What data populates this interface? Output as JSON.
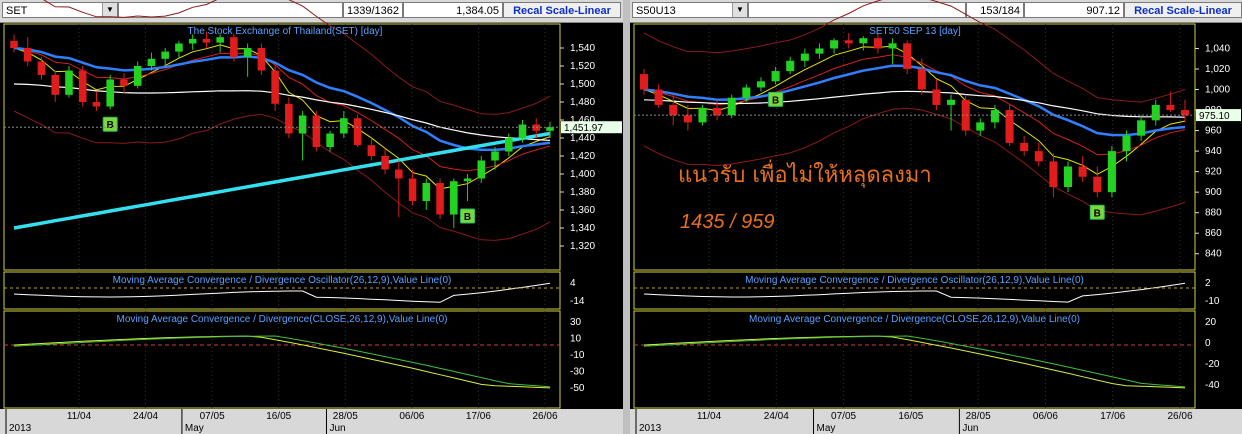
{
  "panels": [
    {
      "symbol": "SET",
      "count": "1339/1362",
      "price": "1,384.05",
      "scale_button": "Recal Scale-Linear",
      "title": "The Stock Exchange of Thailand(SET) [day]",
      "last_label": "1,451.97",
      "last_value": 1451.97,
      "buy_marker": "B",
      "macd1_title": "Moving Average Convergence / Divergence Oscillator(26,12,9),Value Line(0)",
      "macd2_title": "Moving Average Convergence / Divergence(CLOSE,26,12,9),Value Line(0)",
      "x_ticks": [
        "11/04",
        "24/04",
        "07/05",
        "16/05",
        "28/05",
        "06/06",
        "17/06",
        "26/06"
      ],
      "months": [
        "2013",
        "May",
        "Jun"
      ],
      "price_axis": {
        "min": 1300,
        "max": 1560,
        "ticks": [
          1320,
          1340,
          1360,
          1380,
          1400,
          1420,
          1440,
          1460,
          1480,
          1500,
          1520,
          1540
        ]
      },
      "macd1_axis": {
        "ticks": [
          "4",
          "-14"
        ]
      },
      "macd2_axis": {
        "ticks": [
          "30",
          "10",
          "-10",
          "-30",
          "-50"
        ]
      }
    },
    {
      "symbol": "S50U13",
      "count": "153/184",
      "price": "907.12",
      "scale_button": "Recal Scale-Linear",
      "title": "SET50 SEP 13  [day]",
      "last_label": "975.10",
      "last_value": 975.1,
      "buy_marker": "B",
      "annotation_line1": "แนวรับ เพื่อไม่ให้หลุดลงมา",
      "annotation_line2": "1435 / 959",
      "macd1_title": "Moving Average Convergence / Divergence Oscillator(26,12,9),Value Line(0)",
      "macd2_title": "Moving Average Convergence / Divergence(CLOSE,26,12,9),Value Line(0)",
      "x_ticks": [
        "11/04",
        "24/04",
        "07/05",
        "16/05",
        "28/05",
        "06/06",
        "17/06",
        "26/06"
      ],
      "months": [
        "2013",
        "May",
        "Jun"
      ],
      "price_axis": {
        "min": 830,
        "max": 1058,
        "ticks": [
          840,
          860,
          880,
          900,
          920,
          940,
          960,
          980,
          1000,
          1020,
          1040
        ]
      },
      "macd1_axis": {
        "ticks": [
          "2",
          "-10"
        ]
      },
      "macd2_axis": {
        "ticks": [
          "20",
          "0",
          "-20",
          "-40"
        ]
      }
    }
  ],
  "chart_data": [
    {
      "type": "candlestick",
      "symbol": "SET",
      "candles": [
        [
          1548,
          1555,
          1535,
          1540
        ],
        [
          1540,
          1552,
          1520,
          1525
        ],
        [
          1525,
          1530,
          1505,
          1510
        ],
        [
          1510,
          1515,
          1480,
          1488
        ],
        [
          1488,
          1520,
          1485,
          1515
        ],
        [
          1515,
          1520,
          1475,
          1480
        ],
        [
          1480,
          1492,
          1470,
          1475
        ],
        [
          1475,
          1510,
          1472,
          1505
        ],
        [
          1505,
          1512,
          1490,
          1498
        ],
        [
          1498,
          1525,
          1495,
          1520
        ],
        [
          1520,
          1535,
          1515,
          1528
        ],
        [
          1528,
          1540,
          1520,
          1536
        ],
        [
          1536,
          1548,
          1528,
          1545
        ],
        [
          1545,
          1555,
          1538,
          1550
        ],
        [
          1550,
          1558,
          1540,
          1546
        ],
        [
          1546,
          1555,
          1535,
          1552
        ],
        [
          1552,
          1556,
          1525,
          1530
        ],
        [
          1530,
          1545,
          1508,
          1540
        ],
        [
          1540,
          1545,
          1510,
          1515
        ],
        [
          1515,
          1522,
          1470,
          1478
        ],
        [
          1478,
          1485,
          1440,
          1445
        ],
        [
          1445,
          1470,
          1415,
          1465
        ],
        [
          1465,
          1470,
          1425,
          1430
        ],
        [
          1430,
          1448,
          1425,
          1445
        ],
        [
          1445,
          1470,
          1440,
          1462
        ],
        [
          1462,
          1466,
          1430,
          1432
        ],
        [
          1432,
          1440,
          1415,
          1420
        ],
        [
          1420,
          1428,
          1400,
          1405
        ],
        [
          1405,
          1415,
          1352,
          1395
        ],
        [
          1395,
          1405,
          1365,
          1370
        ],
        [
          1370,
          1395,
          1360,
          1390
        ],
        [
          1390,
          1395,
          1350,
          1355
        ],
        [
          1355,
          1395,
          1340,
          1392
        ],
        [
          1392,
          1400,
          1370,
          1395
        ],
        [
          1395,
          1420,
          1390,
          1415
        ],
        [
          1415,
          1430,
          1405,
          1425
        ],
        [
          1425,
          1445,
          1420,
          1440
        ],
        [
          1440,
          1460,
          1435,
          1455
        ],
        [
          1455,
          1462,
          1440,
          1448
        ],
        [
          1448,
          1458,
          1440,
          1452
        ]
      ],
      "markers": [
        {
          "label": "B",
          "index": 7
        },
        {
          "label": "B",
          "index": 33
        }
      ]
    },
    {
      "type": "candlestick",
      "symbol": "S50U13",
      "candles": [
        [
          1015,
          1020,
          995,
          1000
        ],
        [
          1000,
          1005,
          982,
          985
        ],
        [
          985,
          995,
          965,
          975
        ],
        [
          975,
          985,
          960,
          968
        ],
        [
          968,
          985,
          965,
          982
        ],
        [
          982,
          990,
          970,
          975
        ],
        [
          975,
          995,
          972,
          992
        ],
        [
          992,
          1005,
          988,
          1002
        ],
        [
          1002,
          1012,
          998,
          1008
        ],
        [
          1008,
          1022,
          1005,
          1018
        ],
        [
          1018,
          1032,
          1015,
          1028
        ],
        [
          1028,
          1040,
          1022,
          1035
        ],
        [
          1035,
          1045,
          1030,
          1040
        ],
        [
          1040,
          1050,
          1035,
          1048
        ],
        [
          1048,
          1055,
          1040,
          1045
        ],
        [
          1045,
          1052,
          1038,
          1050
        ],
        [
          1050,
          1055,
          1035,
          1040
        ],
        [
          1040,
          1050,
          1025,
          1045
        ],
        [
          1045,
          1048,
          1015,
          1020
        ],
        [
          1020,
          1030,
          995,
          1000
        ],
        [
          1000,
          1010,
          980,
          985
        ],
        [
          985,
          995,
          960,
          990
        ],
        [
          990,
          995,
          955,
          960
        ],
        [
          960,
          972,
          955,
          968
        ],
        [
          968,
          985,
          962,
          980
        ],
        [
          980,
          985,
          945,
          948
        ],
        [
          948,
          955,
          935,
          940
        ],
        [
          940,
          948,
          925,
          930
        ],
        [
          930,
          938,
          895,
          905
        ],
        [
          905,
          930,
          900,
          925
        ],
        [
          925,
          935,
          910,
          915
        ],
        [
          915,
          925,
          895,
          900
        ],
        [
          900,
          945,
          895,
          940
        ],
        [
          940,
          960,
          930,
          955
        ],
        [
          955,
          975,
          950,
          970
        ],
        [
          970,
          990,
          965,
          985
        ],
        [
          985,
          998,
          978,
          980
        ],
        [
          980,
          990,
          968,
          975
        ]
      ],
      "markers": [
        {
          "label": "B",
          "index": 9
        },
        {
          "label": "B",
          "index": 31
        }
      ]
    }
  ]
}
